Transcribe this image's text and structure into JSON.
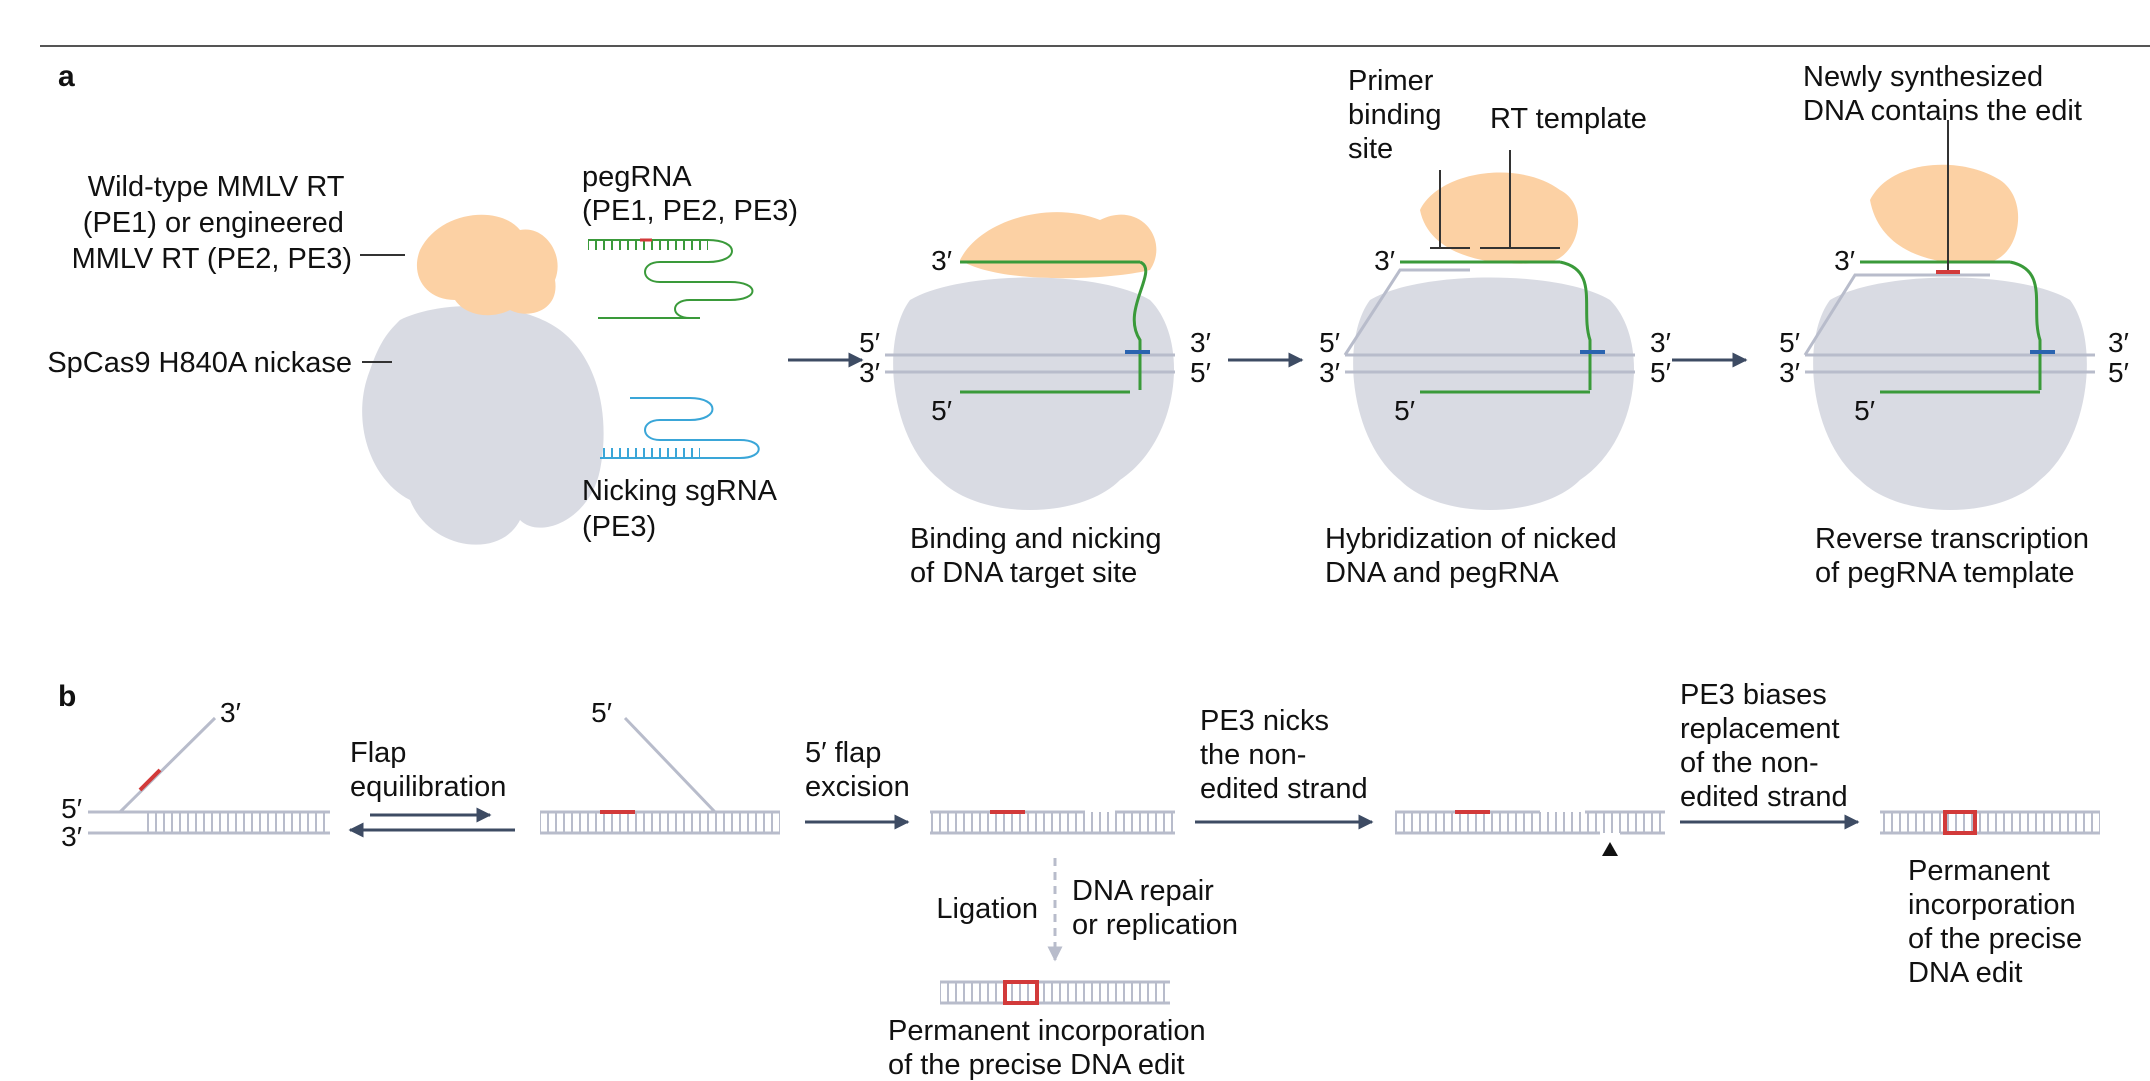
{
  "panels": {
    "a": "a",
    "b": "b"
  },
  "colors": {
    "rt": "#fcd1a4",
    "cas9": "#d9dbe3",
    "dna": "#b8bccb",
    "pegrna": "#3a9a3a",
    "sgrna": "#3aa6d8",
    "edit": "#d23a3a",
    "arrow": "#3d4b63"
  },
  "panel_a": {
    "rt_label": [
      "Wild-type MMLV RT",
      "(PE1) or engineered",
      "MMLV RT (PE2, PE3)"
    ],
    "cas9_label": "SpCas9 H840A nickase",
    "pegrna_label": [
      "pegRNA",
      "(PE1, PE2, PE3)"
    ],
    "sgrna_label": [
      "Nicking sgRNA",
      "(PE3)"
    ],
    "step1_caption": [
      "Binding and nicking",
      "of DNA target site"
    ],
    "step2_caption": [
      "Hybridization of nicked",
      "DNA and pegRNA"
    ],
    "step3_caption": [
      "Reverse transcription",
      "of pegRNA template"
    ],
    "pbs_label": [
      "Primer",
      "binding",
      "site"
    ],
    "rt_template_label": "RT template",
    "newly_label": [
      "Newly synthesized",
      "DNA contains the edit"
    ],
    "ends": {
      "five": "5′",
      "three": "3′"
    }
  },
  "panel_b": {
    "flap_label": [
      "Flap",
      "equilibration"
    ],
    "excision_label": [
      "5′ flap",
      "excision"
    ],
    "pe3_nick_label": [
      "PE3 nicks",
      "the non-",
      "edited strand"
    ],
    "pe3_bias_label": [
      "PE3 biases",
      "replacement",
      "of the non-",
      "edited strand"
    ],
    "ligation_label": "Ligation",
    "repair_label": [
      "DNA repair",
      "or replication"
    ],
    "permanent_bottom": [
      "Permanent incorporation",
      "of the precise DNA edit"
    ],
    "permanent_right": [
      "Permanent",
      "incorporation",
      "of the precise",
      "DNA edit"
    ],
    "ends": {
      "five": "5′",
      "three": "3′"
    }
  }
}
